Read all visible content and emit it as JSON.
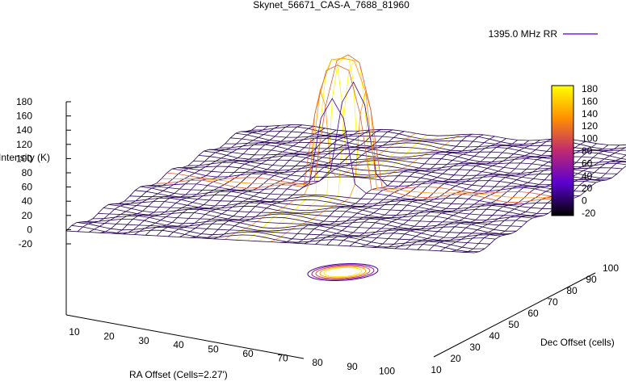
{
  "chart_data": {
    "type": "surface3d",
    "title": "Skynet_56671_CAS-A_7688_81960",
    "xlabel": "RA Offset (Cells=2.27')",
    "ylabel": "Dec Offset (cells)",
    "zlabel": "Intensity (K)",
    "legend": {
      "entries": [
        "1395.0 MHz RR"
      ],
      "placement": "top-right"
    },
    "xlim": [
      0,
      100
    ],
    "ylim": [
      10,
      100
    ],
    "zlim": [
      -20,
      180
    ],
    "x_ticks": [
      "10",
      "20",
      "30",
      "40",
      "50",
      "60",
      "70",
      "80",
      "90",
      "100"
    ],
    "y_ticks": [
      "10",
      "20",
      "30",
      "40",
      "50",
      "60",
      "70",
      "80",
      "90",
      "100"
    ],
    "z_ticks": [
      "180",
      "160",
      "140",
      "120",
      "100",
      "80",
      "60",
      "40",
      "20",
      "0",
      "-20"
    ],
    "colorbar": {
      "range": [
        -20,
        180
      ],
      "ticks": [
        "180",
        "160",
        "140",
        "120",
        "100",
        "80",
        "60",
        "40",
        "20",
        "0",
        "-20"
      ],
      "colors": [
        "#000000",
        "#5a00d0",
        "#c02a70",
        "#ff9000",
        "#ffff00"
      ]
    },
    "source": {
      "peak_intensity": 180,
      "center_ra_offset": 50,
      "center_dec_offset": 50,
      "plateau_radius_cells": 12,
      "background_intensity": 0
    },
    "surface_color_low": "#7a20e0",
    "surface_color_high": "#ffd800"
  }
}
